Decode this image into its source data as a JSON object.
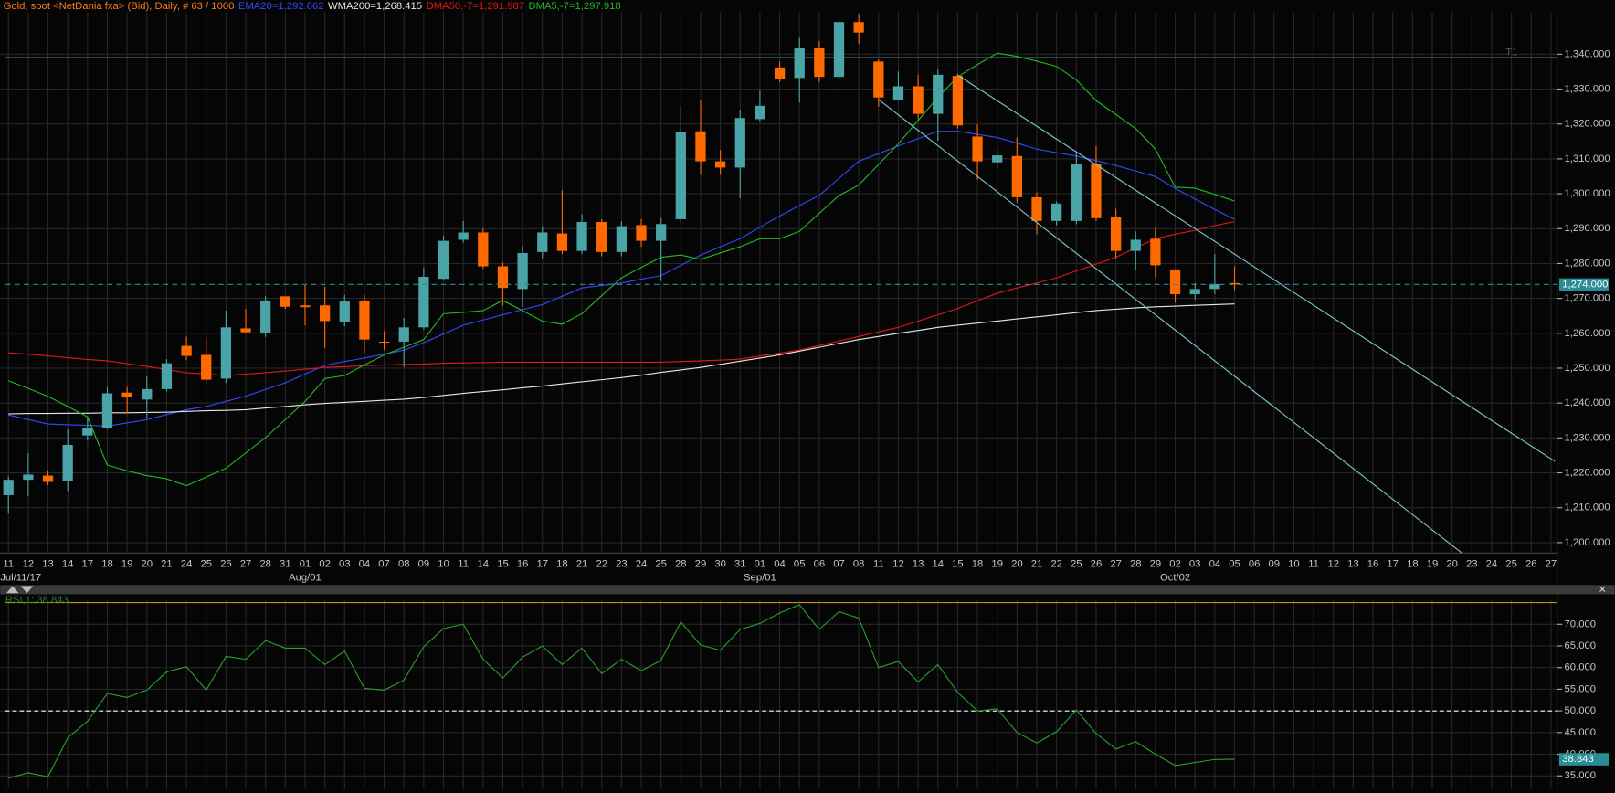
{
  "chart_data": [
    {
      "type": "candlestick",
      "title": "Gold, spot <NetDania fxa> (Bid), Daily, # 63 / 1000",
      "categories": [
        "11",
        "12",
        "13",
        "14",
        "17",
        "18",
        "19",
        "20",
        "21",
        "24",
        "25",
        "26",
        "27",
        "28",
        "31",
        "01",
        "02",
        "03",
        "04",
        "07",
        "08",
        "09",
        "10",
        "11",
        "14",
        "15",
        "16",
        "17",
        "18",
        "21",
        "22",
        "23",
        "24",
        "25",
        "28",
        "29",
        "30",
        "31",
        "01",
        "04",
        "05",
        "06",
        "07",
        "08",
        "11",
        "12",
        "13",
        "14",
        "15",
        "18",
        "19",
        "20",
        "21",
        "22",
        "25",
        "26",
        "27",
        "28",
        "29",
        "02",
        "03",
        "04",
        "05",
        "06",
        "09",
        "10",
        "11",
        "12",
        "13",
        "16",
        "17",
        "18",
        "19",
        "20",
        "23",
        "24",
        "25",
        "26",
        "27"
      ],
      "x_major_labels": [
        "Jul/11/17",
        null,
        null,
        null,
        null,
        null,
        null,
        null,
        null,
        null,
        null,
        null,
        null,
        null,
        null,
        "Aug/01",
        null,
        null,
        null,
        null,
        null,
        null,
        null,
        null,
        null,
        null,
        null,
        null,
        null,
        null,
        null,
        null,
        null,
        null,
        null,
        null,
        null,
        null,
        "Sep/01",
        null,
        null,
        null,
        null,
        null,
        null,
        null,
        null,
        null,
        null,
        null,
        null,
        null,
        null,
        null,
        null,
        null,
        null,
        null,
        null,
        "Oct/02",
        null,
        null,
        null,
        null,
        null,
        null,
        null,
        null,
        null,
        null,
        null,
        null,
        null,
        null,
        null,
        null,
        null,
        null,
        null
      ],
      "open": [
        1213.6,
        1218,
        1219.2,
        1217.7,
        1230.7,
        1232.8,
        1243,
        1241,
        1244,
        1256.4,
        1253.8,
        1247,
        1261.4,
        1260,
        1270.6,
        1268,
        1268,
        1263.2,
        1269.4,
        1257.6,
        1257.6,
        1261.7,
        1275.6,
        1286.8,
        1288.9,
        1279.2,
        1272.7,
        1283.3,
        1288.6,
        1283.6,
        1291.9,
        1283.3,
        1291,
        1286.5,
        1292.7,
        1317.9,
        1309.3,
        1307.5,
        1321.4,
        1336.2,
        1333.2,
        1341.8,
        1333.5,
        1349.2,
        1337.9,
        1327,
        1330.8,
        1322.9,
        1333.8,
        1316.4,
        1309,
        1310.8,
        1299,
        1292.2,
        1292.2,
        1308.4,
        1293.3,
        1283.6,
        1287.1,
        1278.3,
        1271.2,
        1272.7,
        1274.4,
        null,
        null,
        null,
        null,
        null,
        null,
        null,
        null,
        null,
        null,
        null,
        null,
        null,
        null,
        null,
        null
      ],
      "high": [
        1219,
        1225.6,
        1220.7,
        1232.5,
        1236,
        1244.6,
        1244.6,
        1247.6,
        1252.6,
        1259,
        1258.8,
        1266.5,
        1267,
        1270.6,
        1270.6,
        1273.9,
        1273.3,
        1271,
        1271,
        1260.6,
        1264.4,
        1278.9,
        1288,
        1292.2,
        1290.1,
        1280.3,
        1285,
        1290.7,
        1301,
        1294.2,
        1292.7,
        1292.2,
        1292.7,
        1293,
        1325.2,
        1326.7,
        1312.5,
        1324.1,
        1329.7,
        1337.9,
        1344.7,
        1343.8,
        1349.7,
        1351.5,
        1338.5,
        1335,
        1334.1,
        1335.6,
        1334.4,
        1319.9,
        1312.5,
        1316.1,
        1300.4,
        1297.8,
        1311.9,
        1313.7,
        1295.7,
        1289.2,
        1290.4,
        1278.3,
        1274.4,
        1282.7,
        1279.2,
        null,
        null,
        null,
        null,
        null,
        null,
        null,
        null,
        null,
        null,
        null,
        null,
        null,
        null,
        null,
        null
      ],
      "low": [
        1208.3,
        1213.3,
        1216.5,
        1214.8,
        1229.2,
        1232.5,
        1237,
        1235.5,
        1243.4,
        1252.3,
        1246.1,
        1245.8,
        1260,
        1259,
        1267,
        1262.3,
        1255.8,
        1262,
        1254.4,
        1255.2,
        1250.2,
        1261.1,
        1275.3,
        1286,
        1278.6,
        1267.9,
        1267.6,
        1281.5,
        1282.7,
        1282.7,
        1282.1,
        1282.1,
        1284.8,
        1275,
        1291.9,
        1305.4,
        1305.4,
        1298.7,
        1320.8,
        1332,
        1326.1,
        1332,
        1332.9,
        1343,
        1324.9,
        1326.7,
        1321.4,
        1315.2,
        1318.7,
        1304,
        1307.2,
        1297.5,
        1288.3,
        1291,
        1291.3,
        1292.2,
        1281.5,
        1278,
        1275.9,
        1268.8,
        1269.7,
        1271.2,
        1272.4,
        null,
        null,
        null,
        null,
        null,
        null,
        null,
        null,
        null,
        null,
        null,
        null,
        null,
        null,
        null,
        null
      ],
      "close": [
        1218,
        1219.5,
        1217.4,
        1228,
        1232.8,
        1242.8,
        1241.6,
        1244,
        1251.4,
        1253.5,
        1246.7,
        1261.7,
        1260.3,
        1269.4,
        1267.6,
        1267.5,
        1263.5,
        1269.1,
        1258.2,
        1257.4,
        1261.7,
        1276.2,
        1286.5,
        1288.9,
        1279.2,
        1273,
        1283,
        1288.9,
        1283.6,
        1291.9,
        1283.3,
        1290.7,
        1286.5,
        1291.3,
        1317.6,
        1309.3,
        1307.5,
        1321.7,
        1325.2,
        1332.9,
        1341.8,
        1333.5,
        1349.2,
        1346.2,
        1327.6,
        1330.8,
        1322.9,
        1334.1,
        1319.6,
        1309.3,
        1311,
        1299,
        1292.2,
        1297.2,
        1308.4,
        1293,
        1283.6,
        1286.8,
        1279.5,
        1271.2,
        1272.7,
        1274.1,
        1274,
        null,
        null,
        null,
        null,
        null,
        null,
        null,
        null,
        null,
        null,
        null,
        null,
        null,
        null,
        null,
        null
      ],
      "up_color": "#4aa3a6",
      "down_color": "#ff6a00",
      "series": [
        {
          "name": "EMA20=1,292.662",
          "color": "#3348ff",
          "values": [
            1236.6,
            1235.3,
            1234,
            1233.8,
            1233.6,
            1233.4,
            1234.3,
            1235.2,
            1236.7,
            1238.1,
            1239,
            1240.5,
            1242,
            1243.9,
            1245.8,
            1248.3,
            1250.8,
            1251.9,
            1252.9,
            1254,
            1255.2,
            1257.3,
            1259.8,
            1262.3,
            1263.8,
            1265.3,
            1266.8,
            1268.2,
            1270.6,
            1273,
            1273.7,
            1274.4,
            1275.5,
            1276.5,
            1279.5,
            1282.4,
            1284.8,
            1287.1,
            1290.4,
            1293.6,
            1296.6,
            1299.5,
            1304.4,
            1309.3,
            1311.5,
            1313.7,
            1315.8,
            1317.9,
            1317.9,
            1317,
            1316.1,
            1314.5,
            1312.8,
            1311.8,
            1310.8,
            1309.5,
            1308.1,
            1306.5,
            1304.9,
            1301.5,
            1298.5,
            1295.5,
            1292.662,
            null,
            null,
            null,
            null,
            null,
            null,
            null,
            null,
            null,
            null,
            null,
            null,
            null,
            null,
            null,
            null
          ]
        },
        {
          "name": "WMA200=1,268.415",
          "color": "#e8e8e8",
          "values": [
            1236.9,
            1237,
            1237,
            1237.1,
            1237.1,
            1237.2,
            1237.2,
            1237.3,
            1237.4,
            1237.6,
            1237.8,
            1237.9,
            1238.1,
            1238.6,
            1239,
            1239.5,
            1239.9,
            1240.2,
            1240.5,
            1240.8,
            1241.1,
            1241.6,
            1242.2,
            1242.8,
            1243.3,
            1243.8,
            1244.4,
            1244.9,
            1245.5,
            1246.1,
            1246.7,
            1247.3,
            1248,
            1248.8,
            1249.5,
            1250.2,
            1251.1,
            1252,
            1252.9,
            1253.8,
            1254.9,
            1256,
            1257.1,
            1258.2,
            1259.1,
            1260,
            1260.8,
            1261.7,
            1262.3,
            1262.9,
            1263.5,
            1264.1,
            1264.7,
            1265.3,
            1265.9,
            1266.5,
            1266.9,
            1267.3,
            1267.6,
            1267.8,
            1268,
            1268.2,
            1268.415,
            null,
            null,
            null,
            null,
            null,
            null,
            null,
            null,
            null,
            null,
            null,
            null,
            null,
            null,
            null,
            null
          ]
        },
        {
          "name": "DMA50,-7=1,291.987",
          "color": "#e01818",
          "values": [
            1254.4,
            1254,
            1253.5,
            1253,
            1252.5,
            1252.1,
            1251.3,
            1250.5,
            1249.6,
            1248.7,
            1248.3,
            1247.9,
            1248.3,
            1248.7,
            1249.2,
            1249.7,
            1250.2,
            1250.4,
            1250.7,
            1250.9,
            1251.1,
            1251.2,
            1251.4,
            1251.5,
            1251.6,
            1251.7,
            1251.7,
            1251.7,
            1251.7,
            1251.7,
            1251.7,
            1251.7,
            1251.7,
            1251.7,
            1251.9,
            1252.1,
            1252.3,
            1252.6,
            1253.5,
            1254.3,
            1255.2,
            1256.5,
            1257.8,
            1259.1,
            1260.4,
            1261.7,
            1263.5,
            1265.3,
            1267.1,
            1269.3,
            1271.5,
            1273,
            1274.4,
            1275.9,
            1277.9,
            1279.8,
            1281.8,
            1284.5,
            1287.1,
            1288.4,
            1289.5,
            1290.9,
            1291.987,
            null,
            null,
            null,
            null,
            null,
            null,
            null,
            null,
            null,
            null,
            null,
            null,
            null,
            null,
            null,
            null
          ]
        },
        {
          "name": "DMA5,-7=1,297.918",
          "color": "#22b822",
          "values": [
            1246.4,
            1244.2,
            1241.9,
            1239,
            1236,
            1222.2,
            1220.6,
            1219.2,
            1218.3,
            1216.3,
            1218.8,
            1221.3,
            1225.7,
            1230.1,
            1235.3,
            1240.5,
            1247,
            1247.9,
            1250.9,
            1253.8,
            1256,
            1258.2,
            1265.6,
            1266,
            1266.5,
            1269.4,
            1266.5,
            1263.5,
            1262.6,
            1265.6,
            1270.8,
            1275.9,
            1278.9,
            1281.8,
            1282.4,
            1281.2,
            1283,
            1284.8,
            1287.1,
            1287.1,
            1289.2,
            1294.4,
            1299.5,
            1302.5,
            1308.4,
            1314.3,
            1321,
            1327.6,
            1333.5,
            1337,
            1340.3,
            1339.4,
            1338,
            1336.5,
            1332.6,
            1326.7,
            1322.7,
            1318.7,
            1312.8,
            1301.9,
            1301.6,
            1299.8,
            1297.918,
            null,
            null,
            null,
            null,
            null,
            null,
            null,
            null,
            null,
            null,
            null,
            null,
            null,
            null,
            null,
            null
          ]
        }
      ],
      "trendlines": [
        {
          "color": "#7ec8cf",
          "points": [
            [
              44,
              1327
            ],
            [
              73.5,
              1197
            ]
          ]
        },
        {
          "color": "#7ec8cf",
          "points": [
            [
              48,
              1334
            ],
            [
              78.2,
              1223.3
            ]
          ]
        }
      ],
      "hlines": [
        {
          "value": 1339,
          "color": "#5fbfa8",
          "label": "T1"
        }
      ],
      "last_price": {
        "value": 1274,
        "label": "1,274.000",
        "color": "#2a8d96"
      },
      "ylim": [
        1197,
        1352
      ],
      "yticks": [
        {
          "value": 1200,
          "label": "1,200.000"
        },
        {
          "value": 1210,
          "label": "1,210.000"
        },
        {
          "value": 1220,
          "label": "1,220.000"
        },
        {
          "value": 1230,
          "label": "1,230.000"
        },
        {
          "value": 1240,
          "label": "1,240.000"
        },
        {
          "value": 1250,
          "label": "1,250.000"
        },
        {
          "value": 1260,
          "label": "1,260.000"
        },
        {
          "value": 1270,
          "label": "1,270.000"
        },
        {
          "value": 1280,
          "label": "1,280.000"
        },
        {
          "value": 1290,
          "label": "1,290.000"
        },
        {
          "value": 1300,
          "label": "1,300.000"
        },
        {
          "value": 1310,
          "label": "1,310.000"
        },
        {
          "value": 1320,
          "label": "1,320.000"
        },
        {
          "value": 1330,
          "label": "1,330.000"
        },
        {
          "value": 1340,
          "label": "1,340.000"
        }
      ],
      "grid": true
    },
    {
      "type": "line",
      "title": "RSI,1: 38.843",
      "series": [
        {
          "color": "#2a9e2a",
          "values": [
            34.5,
            35.7,
            34.8,
            43.8,
            47.6,
            54,
            53.1,
            54.8,
            59,
            60.2,
            54.8,
            62.6,
            61.9,
            66.2,
            64.5,
            64.5,
            60.7,
            63.8,
            55.2,
            54.8,
            57.1,
            64.8,
            69,
            70,
            61.9,
            57.6,
            62.4,
            65,
            60.7,
            64.5,
            58.6,
            61.9,
            59.3,
            61.7,
            70.5,
            65.2,
            64,
            68.8,
            70.2,
            72.6,
            74.5,
            68.8,
            72.9,
            71.4,
            60,
            61.4,
            56.7,
            60.7,
            54.3,
            50,
            50.5,
            45,
            42.6,
            45.2,
            50.2,
            44.8,
            41.2,
            42.9,
            40,
            37.4,
            38.1,
            38.8,
            38.843,
            null,
            null,
            null,
            null,
            null,
            null,
            null,
            null,
            null,
            null,
            null,
            null,
            null,
            null,
            null,
            null
          ]
        }
      ],
      "hlines": [
        {
          "value": 75,
          "color": "#c8901e"
        },
        {
          "value": 50,
          "color": "#ffffff",
          "style": "dashed"
        }
      ],
      "last_price": {
        "value": 38.843,
        "label": "38.843",
        "color": "#2a8d96"
      },
      "ylim": [
        32,
        75.5
      ],
      "yticks": [
        {
          "value": 35,
          "label": "35.000"
        },
        {
          "value": 40,
          "label": "40.000"
        },
        {
          "value": 45,
          "label": "45.000"
        },
        {
          "value": 50,
          "label": "50.000"
        },
        {
          "value": 55,
          "label": "55.000"
        },
        {
          "value": 60,
          "label": "60.000"
        },
        {
          "value": 65,
          "label": "65.000"
        },
        {
          "value": 70,
          "label": "70.000"
        }
      ],
      "grid": true
    }
  ]
}
